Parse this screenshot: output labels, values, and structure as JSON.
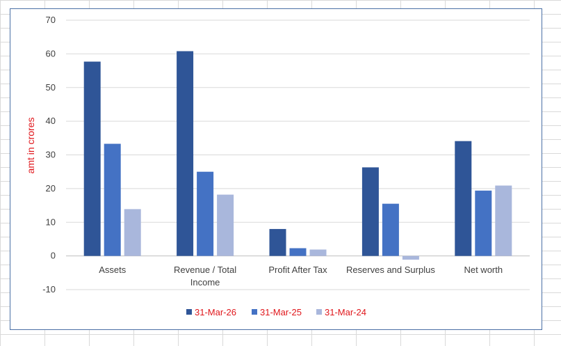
{
  "chart_data": {
    "type": "bar",
    "categories": [
      [
        "Assets"
      ],
      [
        "Revenue / Total",
        "Income"
      ],
      [
        "Profit After Tax"
      ],
      [
        "Reserves and Surplus"
      ],
      [
        "Net worth"
      ]
    ],
    "series": [
      {
        "name": "31-Mar-26",
        "color": "#2f5597",
        "values": [
          57.7,
          60.8,
          8.0,
          26.3,
          34.1
        ]
      },
      {
        "name": "31-Mar-25",
        "color": "#4472c4",
        "values": [
          33.3,
          25.0,
          2.3,
          15.5,
          19.4
        ]
      },
      {
        "name": "31-Mar-24",
        "color": "#a9b7dc",
        "values": [
          13.9,
          18.2,
          1.9,
          -1.1,
          20.9
        ]
      }
    ],
    "title": "",
    "xlabel": "",
    "ylabel": "amt in crores",
    "ylabel_color": "#e0161b",
    "legend_text_color": "#e0161b",
    "ylim": [
      -10,
      70
    ],
    "yticks": [
      -10,
      0,
      10,
      20,
      30,
      40,
      50,
      60,
      70
    ],
    "grid": true,
    "gridline_color": "#d9d9d9",
    "legend_position": "bottom"
  }
}
